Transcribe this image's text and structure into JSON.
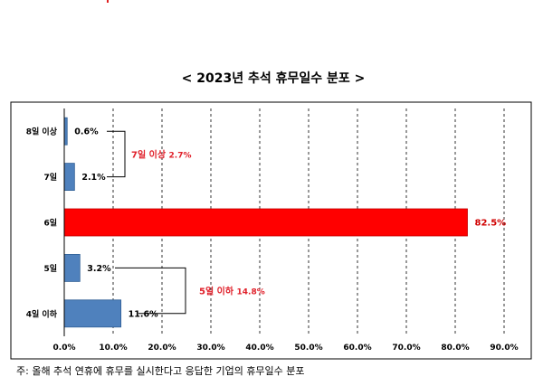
{
  "chart_data": {
    "type": "bar",
    "orientation": "horizontal",
    "title": "< 2023년 추석 휴무일수 분포 >",
    "categories": [
      "8일 이상",
      "7일",
      "6일",
      "5일",
      "4일 이하"
    ],
    "values": [
      0.6,
      2.1,
      82.5,
      3.2,
      11.6
    ],
    "value_labels": [
      "0.6%",
      "2.1%",
      "82.5%",
      "3.2%",
      "11.6%"
    ],
    "xlim": [
      0,
      90
    ],
    "xticks": [
      0,
      10,
      20,
      30,
      40,
      50,
      60,
      70,
      80,
      90
    ],
    "xtick_labels": [
      "0.0%",
      "10.0%",
      "20.0%",
      "30.0%",
      "40.0%",
      "50.0%",
      "60.0%",
      "70.0%",
      "80.0%",
      "90.0%"
    ],
    "grid": "vertical-dashed",
    "colors": {
      "default": "#4f81bd",
      "highlight": "#ff0000",
      "highlight_label": "#d00000",
      "annotation": "#e0202a"
    },
    "highlight_index": 2,
    "annotations": [
      {
        "text_main": "7일 이상",
        "text_value": "2.7%",
        "brackets": [
          0,
          1
        ]
      },
      {
        "text_main": "5일 이하",
        "text_value": "14.8%",
        "brackets": [
          3,
          4
        ]
      }
    ]
  },
  "caption": "주: 올해 추석 연휴에 휴무를 실시한다고 응답한 기업의 휴무일수 분포"
}
